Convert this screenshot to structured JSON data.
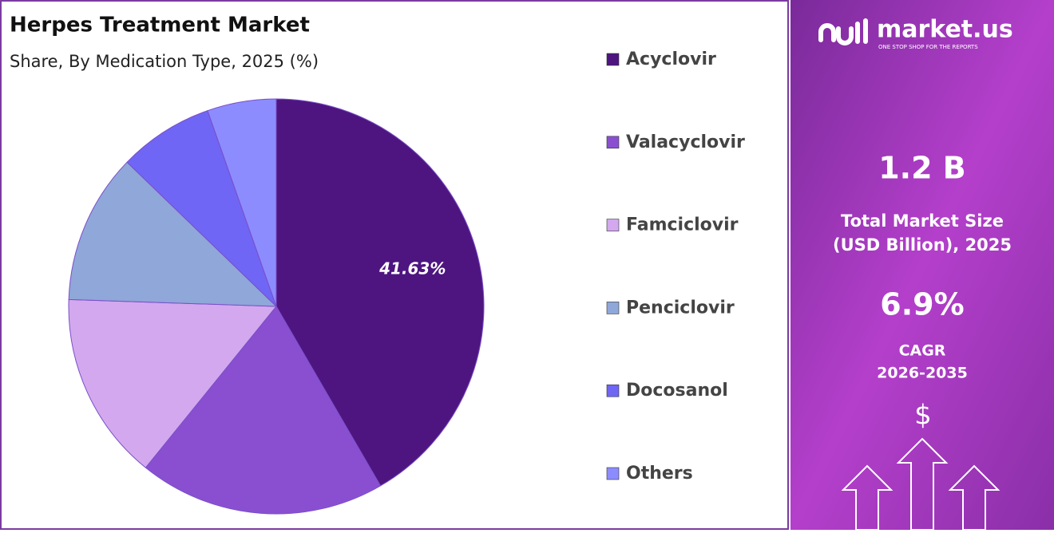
{
  "chart_data": {
    "type": "pie",
    "title": "Herpes Treatment Market",
    "subtitle": "Share, By Medication Type, 2025 (%)",
    "categories": [
      "Acyclovir",
      "Valacyclovir",
      "Famciclovir",
      "Penciclovir",
      "Docosanol",
      "Others"
    ],
    "values": [
      41.63,
      19.2,
      14.7,
      11.7,
      7.4,
      5.37
    ],
    "value_labels": [
      "41.63%",
      null,
      null,
      null,
      null,
      null
    ],
    "colors": [
      "#4e1580",
      "#8a4fd1",
      "#d3a8ee",
      "#8fa7d9",
      "#6f66f5",
      "#8c8cff"
    ],
    "legend": "right"
  },
  "side_panel": {
    "brand": "market.us",
    "tagline": "ONE STOP SHOP FOR THE REPORTS",
    "market_size": "1.2 B",
    "market_size_label": [
      "Total Market Size",
      "(USD Billion), 2025"
    ],
    "cagr": "6.9%",
    "cagr_label": [
      "CAGR",
      "2026-2035"
    ],
    "currency_icon": "$"
  }
}
